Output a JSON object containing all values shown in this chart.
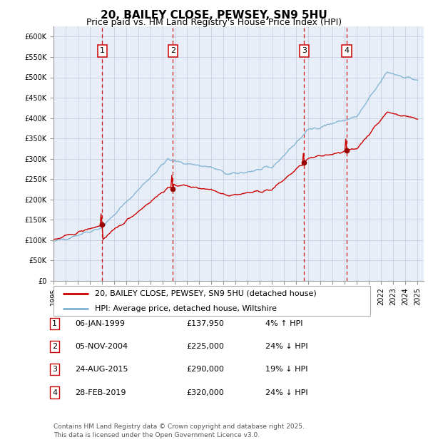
{
  "title": "20, BAILEY CLOSE, PEWSEY, SN9 5HU",
  "subtitle": "Price paid vs. HM Land Registry's House Price Index (HPI)",
  "ylim": [
    0,
    625000
  ],
  "yticks": [
    0,
    50000,
    100000,
    150000,
    200000,
    250000,
    300000,
    350000,
    400000,
    450000,
    500000,
    550000,
    600000
  ],
  "xlim_start": 1995.4,
  "xlim_end": 2025.5,
  "sale_dates": [
    1999.02,
    2004.84,
    2015.65,
    2019.16
  ],
  "sale_prices": [
    137950,
    225000,
    290000,
    320000
  ],
  "sale_labels": [
    "1",
    "2",
    "3",
    "4"
  ],
  "vline_color": "#cc0000",
  "sale_marker_color": "#990000",
  "hpi_line_color": "#7fb3d3",
  "price_line_color": "#cc0000",
  "legend_entries": [
    "20, BAILEY CLOSE, PEWSEY, SN9 5HU (detached house)",
    "HPI: Average price, detached house, Wiltshire"
  ],
  "table_data": [
    [
      "1",
      "06-JAN-1999",
      "£137,950",
      "4% ↑ HPI"
    ],
    [
      "2",
      "05-NOV-2004",
      "£225,000",
      "24% ↓ HPI"
    ],
    [
      "3",
      "24-AUG-2015",
      "£290,000",
      "19% ↓ HPI"
    ],
    [
      "4",
      "28-FEB-2019",
      "£320,000",
      "24% ↓ HPI"
    ]
  ],
  "footer": "Contains HM Land Registry data © Crown copyright and database right 2025.\nThis data is licensed under the Open Government Licence v3.0.",
  "bg_color": "#e8eef8",
  "grid_color": "#c8d0e0"
}
